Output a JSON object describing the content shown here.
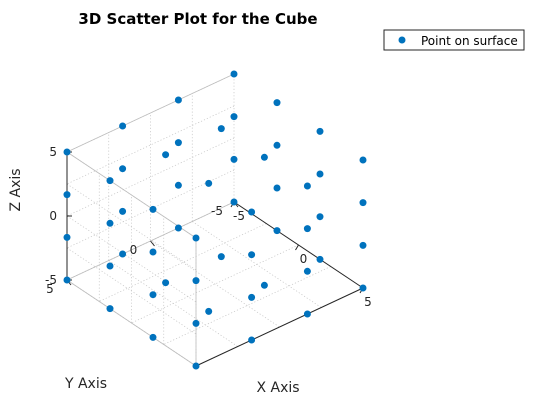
{
  "chart_data": {
    "type": "scatter",
    "projection": "3d",
    "title": "3D Scatter Plot for the Cube",
    "xlabel": "X Axis",
    "ylabel": "Y Axis",
    "zlabel": "Z Axis",
    "xlim": [
      -5,
      5
    ],
    "ylim": [
      -5,
      5
    ],
    "zlim": [
      -5,
      5
    ],
    "xticks": [
      "-5",
      "0",
      "5"
    ],
    "yticks": [
      "-5",
      "0",
      "5"
    ],
    "zticks": [
      "-5",
      "0",
      "5"
    ],
    "grid": true,
    "box": "back-planes",
    "legend": {
      "position": "top-right",
      "entries": [
        "Point on surface"
      ]
    },
    "series": [
      {
        "name": "Point on surface",
        "color": "#0072BD",
        "marker": "filled-circle",
        "points": [
          [
            -5,
            -5,
            -5
          ],
          [
            -5,
            -5,
            -1.67
          ],
          [
            -5,
            -5,
            1.67
          ],
          [
            -5,
            -5,
            5
          ],
          [
            -5,
            5,
            -5
          ],
          [
            -5,
            5,
            -1.67
          ],
          [
            -5,
            5,
            1.67
          ],
          [
            -5,
            5,
            5
          ],
          [
            5,
            -5,
            -5
          ],
          [
            5,
            -5,
            -1.67
          ],
          [
            5,
            -5,
            1.67
          ],
          [
            5,
            -5,
            5
          ],
          [
            5,
            5,
            -5
          ],
          [
            5,
            5,
            -1.67
          ],
          [
            5,
            5,
            1.67
          ],
          [
            5,
            5,
            5
          ],
          [
            -5,
            -1.67,
            -5
          ],
          [
            -5,
            1.67,
            -5
          ],
          [
            5,
            -1.67,
            -5
          ],
          [
            5,
            1.67,
            -5
          ],
          [
            -5,
            -1.67,
            5
          ],
          [
            -5,
            1.67,
            5
          ],
          [
            5,
            -1.67,
            5
          ],
          [
            5,
            1.67,
            5
          ],
          [
            -1.67,
            -5,
            -5
          ],
          [
            1.67,
            -5,
            -5
          ],
          [
            -1.67,
            5,
            -5
          ],
          [
            1.67,
            5,
            -5
          ],
          [
            -1.67,
            -5,
            5
          ],
          [
            1.67,
            -5,
            5
          ],
          [
            -1.67,
            5,
            5
          ],
          [
            1.67,
            5,
            5
          ],
          [
            -5,
            -1.67,
            -1.67
          ],
          [
            -5,
            -1.67,
            1.67
          ],
          [
            -5,
            1.67,
            -1.67
          ],
          [
            -5,
            1.67,
            1.67
          ],
          [
            5,
            -1.67,
            -1.67
          ],
          [
            5,
            -1.67,
            1.67
          ],
          [
            5,
            1.67,
            -1.67
          ],
          [
            5,
            1.67,
            1.67
          ],
          [
            -1.67,
            -5,
            -1.67
          ],
          [
            -1.67,
            -5,
            1.67
          ],
          [
            1.67,
            -5,
            -1.67
          ],
          [
            1.67,
            -5,
            1.67
          ],
          [
            -1.67,
            5,
            -1.67
          ],
          [
            -1.67,
            5,
            1.67
          ],
          [
            1.67,
            5,
            -1.67
          ],
          [
            1.67,
            5,
            1.67
          ],
          [
            -1.67,
            -1.67,
            -5
          ],
          [
            -1.67,
            1.67,
            -5
          ],
          [
            1.67,
            -1.67,
            -5
          ],
          [
            1.67,
            1.67,
            -5
          ],
          [
            -1.67,
            -1.67,
            5
          ],
          [
            -1.67,
            1.67,
            5
          ],
          [
            1.67,
            -1.67,
            5
          ],
          [
            1.67,
            1.67,
            5
          ]
        ]
      }
    ]
  }
}
